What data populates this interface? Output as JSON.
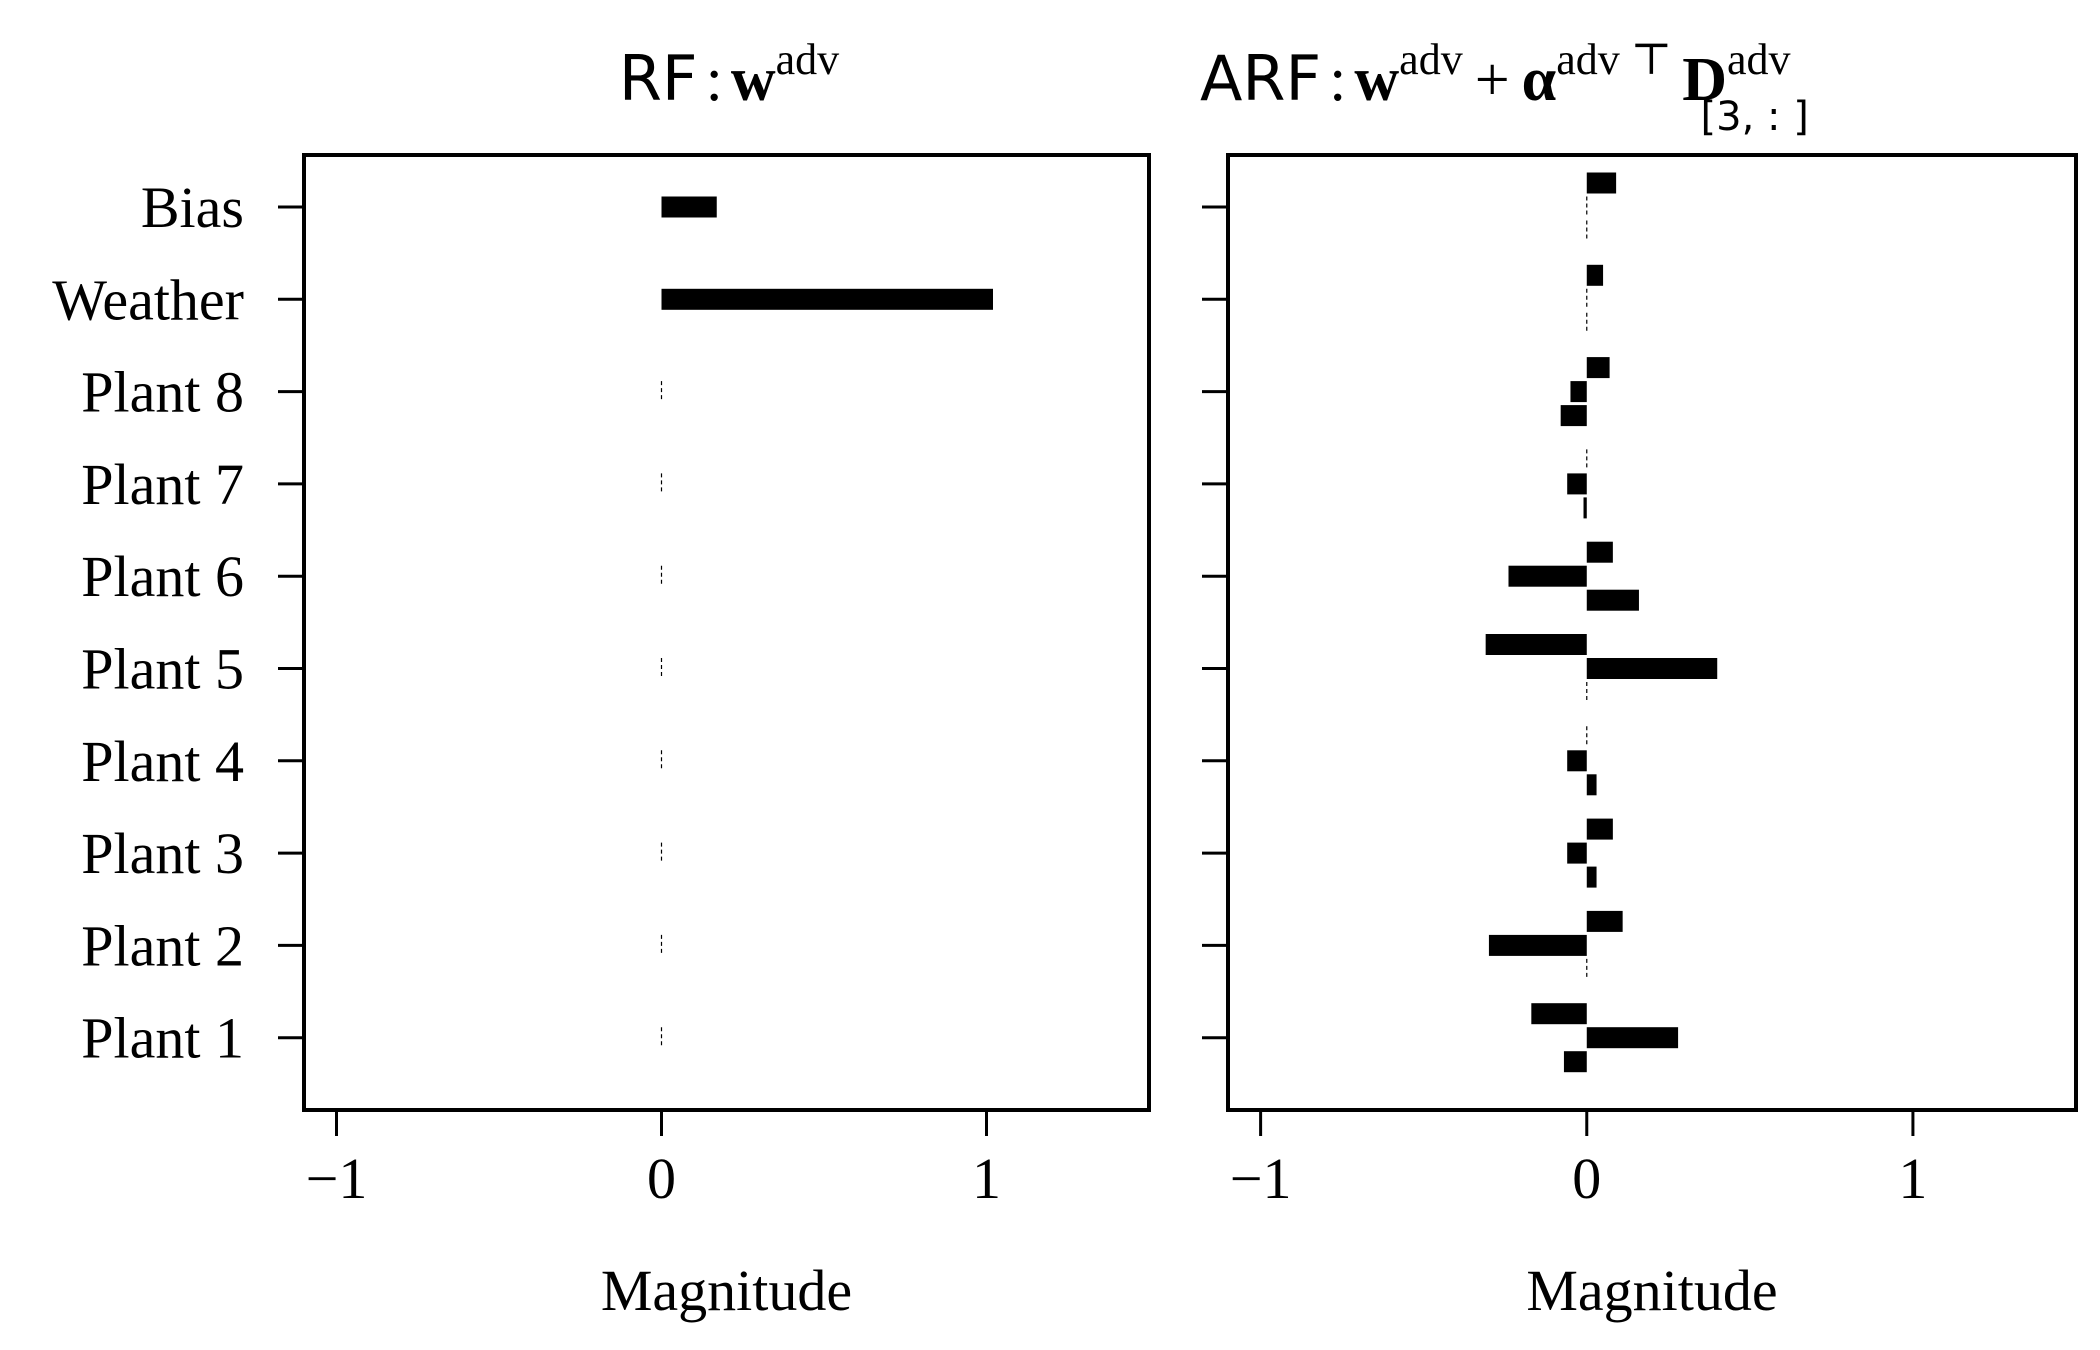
{
  "chart_data": [
    {
      "type": "bar",
      "orientation": "horizontal",
      "title_parts": {
        "prefix": "RF",
        "sep": ":",
        "w": "w",
        "w_sup": "adv"
      },
      "xlabel": "Magnitude",
      "ylabel": "",
      "xlim": [
        -1.1,
        1.5
      ],
      "xticks": [
        -1,
        0,
        1
      ],
      "xtick_labels": [
        "−1",
        "0",
        "1"
      ],
      "categories": [
        "Bias",
        "Weather",
        "Plant 8",
        "Plant 7",
        "Plant 6",
        "Plant 5",
        "Plant 4",
        "Plant 3",
        "Plant 2",
        "Plant 1"
      ],
      "series": [
        {
          "values": [
            0.17,
            1.02,
            0.0,
            0.0,
            0.0,
            0.0,
            0.0,
            0.0,
            0.0,
            0.0
          ]
        }
      ],
      "grid": false,
      "legend": "none"
    },
    {
      "type": "bar",
      "orientation": "horizontal",
      "title_parts": {
        "prefix": "ARF",
        "sep": ":",
        "w": "w",
        "w_sup": "adv",
        "plus": "+",
        "alpha": "α",
        "alpha_sup": "adv ⊤",
        "D": "D",
        "D_sup": "adv",
        "D_sub": "[3, : ]"
      },
      "xlabel": "Magnitude",
      "ylabel": "",
      "xlim": [
        -1.1,
        1.5
      ],
      "xticks": [
        -1,
        0,
        1
      ],
      "xtick_labels": [
        "−1",
        "0",
        "1"
      ],
      "categories": [
        "Bias",
        "Weather",
        "Plant 8",
        "Plant 7",
        "Plant 6",
        "Plant 5",
        "Plant 4",
        "Plant 3",
        "Plant 2",
        "Plant 1"
      ],
      "series": [
        {
          "values": [
            0.09,
            0.05,
            0.07,
            0.0,
            0.08,
            -0.31,
            0.0,
            0.08,
            0.11,
            -0.17
          ]
        },
        {
          "values": [
            0.0,
            0.0,
            -0.05,
            -0.06,
            -0.24,
            0.4,
            -0.06,
            -0.06,
            -0.3,
            0.28
          ]
        },
        {
          "values": [
            0.0,
            0.0,
            -0.08,
            -0.01,
            0.16,
            0.0,
            0.03,
            0.03,
            0.0,
            -0.07
          ]
        }
      ],
      "grid": false,
      "legend": "none"
    }
  ],
  "colors": {
    "bar": "#000000",
    "axis": "#000000",
    "background": "#ffffff"
  }
}
